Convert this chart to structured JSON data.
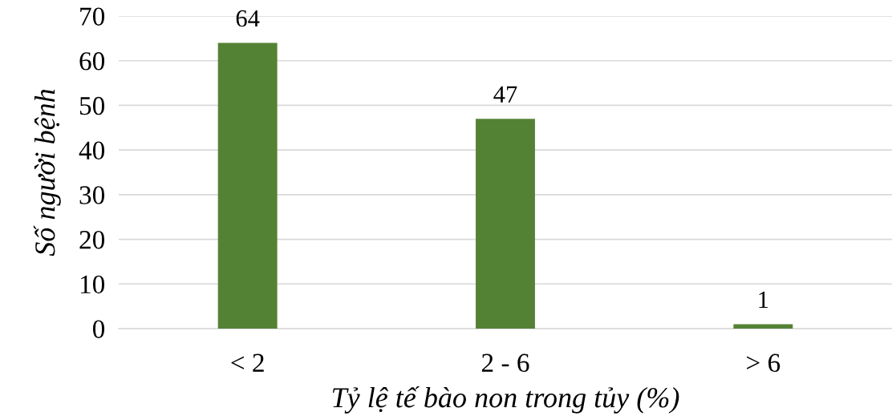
{
  "chart_data": {
    "type": "bar",
    "xlabel": "Tỷ lệ tế bào non trong tủy (%)",
    "ylabel": "Số người bệnh",
    "categories": [
      "< 2",
      "2 - 6",
      "> 6"
    ],
    "values": [
      64,
      47,
      1
    ],
    "color": "#548235",
    "ylim": [
      0,
      70
    ],
    "yticks": [
      0,
      10,
      20,
      30,
      40,
      50,
      60,
      70
    ],
    "grid": "y",
    "data_labels": true
  }
}
